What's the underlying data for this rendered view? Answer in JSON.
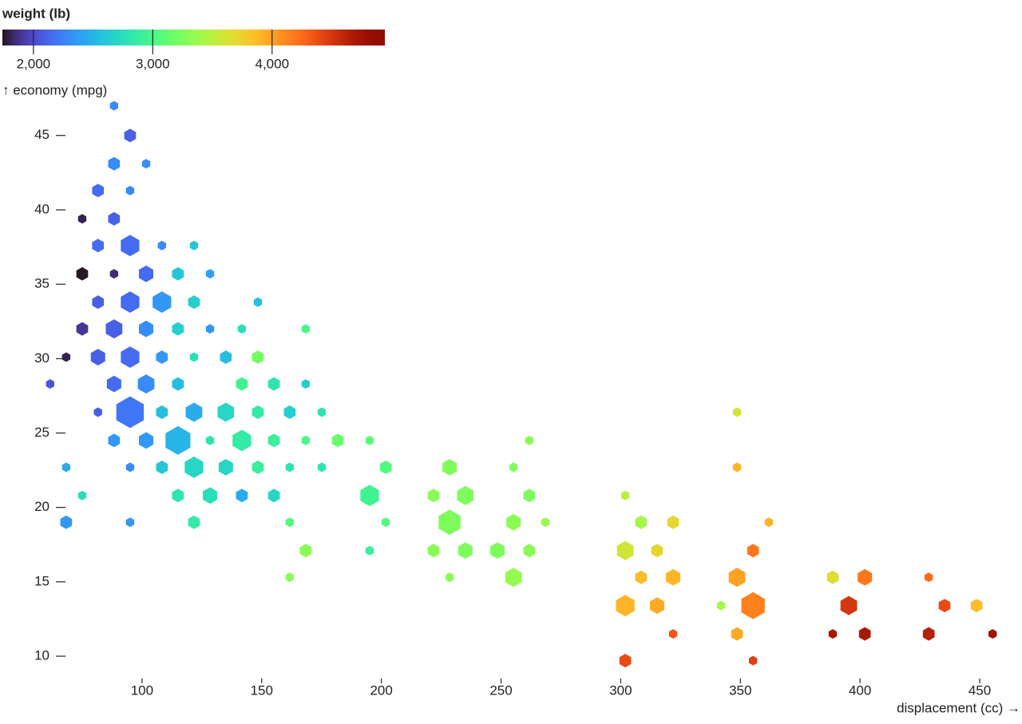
{
  "chart_data": {
    "type": "hexbin",
    "x_label": "displacement (cc) →",
    "y_label": "↑ economy (mpg)",
    "color_label": "weight (lb)",
    "color_scheme": "turbo",
    "xlim": [
      61,
      462
    ],
    "xticks": [
      100,
      150,
      200,
      250,
      300,
      350,
      400,
      450
    ],
    "ylim": [
      8.5,
      47.4
    ],
    "yticks": [
      10,
      15,
      20,
      25,
      30,
      35,
      40,
      45
    ],
    "color_lim": [
      1740,
      4945
    ],
    "color_ticks": [
      {
        "value": 2000,
        "label": "2,000"
      },
      {
        "value": 3000,
        "label": "3,000"
      },
      {
        "value": 4000,
        "label": "4,000"
      }
    ],
    "x": [
      88.3,
      95.0,
      88.3,
      101.7,
      81.6,
      95.0,
      75.0,
      88.3,
      81.6,
      95.0,
      108.3,
      121.7,
      75.0,
      88.3,
      101.7,
      115.0,
      128.4,
      81.6,
      95.0,
      108.3,
      121.7,
      148.4,
      75.0,
      88.3,
      101.7,
      115.0,
      128.4,
      141.7,
      168.4,
      68.3,
      81.6,
      95.0,
      108.3,
      121.7,
      135.0,
      148.4,
      61.6,
      88.3,
      101.7,
      115.0,
      141.7,
      155.1,
      168.4,
      81.6,
      95.0,
      108.3,
      121.7,
      135.0,
      148.4,
      161.7,
      175.1,
      348.6,
      88.3,
      101.7,
      115.0,
      128.4,
      141.7,
      155.1,
      168.4,
      181.8,
      195.1,
      261.8,
      68.3,
      95.0,
      108.3,
      121.7,
      135.0,
      148.4,
      161.7,
      175.1,
      201.8,
      228.5,
      255.2,
      348.6,
      75.0,
      115.0,
      128.4,
      141.7,
      155.1,
      195.1,
      221.8,
      235.1,
      261.8,
      301.9,
      68.3,
      95.0,
      121.7,
      161.7,
      201.8,
      228.5,
      255.2,
      268.5,
      308.5,
      321.9,
      361.9,
      168.4,
      195.1,
      221.8,
      235.1,
      248.5,
      261.8,
      301.9,
      315.2,
      355.3,
      161.7,
      228.5,
      255.2,
      308.5,
      321.9,
      348.6,
      388.6,
      402.0,
      428.7,
      301.9,
      315.2,
      341.9,
      355.3,
      395.3,
      435.3,
      448.7,
      321.9,
      348.6,
      388.6,
      402.0,
      428.7,
      455.4,
      301.9,
      355.3
    ],
    "y": [
      47.0,
      45.0,
      43.1,
      43.1,
      41.3,
      41.3,
      39.4,
      39.4,
      37.6,
      37.6,
      37.6,
      37.6,
      35.7,
      35.7,
      35.7,
      35.7,
      35.7,
      33.8,
      33.8,
      33.8,
      33.8,
      33.8,
      32.0,
      32.0,
      32.0,
      32.0,
      32.0,
      32.0,
      32.0,
      30.1,
      30.1,
      30.1,
      30.1,
      30.1,
      30.1,
      30.1,
      28.3,
      28.3,
      28.3,
      28.3,
      28.3,
      28.3,
      28.3,
      26.4,
      26.4,
      26.4,
      26.4,
      26.4,
      26.4,
      26.4,
      26.4,
      26.4,
      24.5,
      24.5,
      24.5,
      24.5,
      24.5,
      24.5,
      24.5,
      24.5,
      24.5,
      24.5,
      22.7,
      22.7,
      22.7,
      22.7,
      22.7,
      22.7,
      22.7,
      22.7,
      22.7,
      22.7,
      22.7,
      22.7,
      20.8,
      20.8,
      20.8,
      20.8,
      20.8,
      20.8,
      20.8,
      20.8,
      20.8,
      20.8,
      19.0,
      19.0,
      19.0,
      19.0,
      19.0,
      19.0,
      19.0,
      19.0,
      19.0,
      19.0,
      19.0,
      17.1,
      17.1,
      17.1,
      17.1,
      17.1,
      17.1,
      17.1,
      17.1,
      17.1,
      15.3,
      15.3,
      15.3,
      15.3,
      15.3,
      15.3,
      15.3,
      15.3,
      15.3,
      13.4,
      13.4,
      13.4,
      13.4,
      13.4,
      13.4,
      13.4,
      11.5,
      11.5,
      11.5,
      11.5,
      11.5,
      11.5,
      9.7,
      9.7
    ],
    "count": [
      1,
      2,
      2,
      1,
      2,
      1,
      1,
      2,
      2,
      5,
      1,
      1,
      2,
      1,
      3,
      2,
      1,
      2,
      5,
      5,
      2,
      1,
      2,
      4,
      3,
      2,
      1,
      1,
      1,
      1,
      3,
      5,
      2,
      1,
      2,
      2,
      1,
      3,
      4,
      2,
      2,
      2,
      1,
      1,
      11,
      2,
      4,
      4,
      2,
      2,
      1,
      1,
      2,
      3,
      9,
      1,
      5,
      2,
      1,
      2,
      1,
      1,
      1,
      1,
      2,
      5,
      3,
      2,
      1,
      1,
      2,
      3,
      1,
      1,
      1,
      2,
      3,
      2,
      2,
      5,
      2,
      4,
      2,
      1,
      2,
      1,
      2,
      1,
      1,
      7,
      3,
      1,
      2,
      2,
      1,
      2,
      1,
      2,
      3,
      3,
      2,
      4,
      2,
      2,
      1,
      1,
      4,
      2,
      3,
      4,
      2,
      3,
      1,
      5,
      3,
      1,
      8,
      4,
      2,
      2,
      1,
      2,
      1,
      2,
      2,
      1,
      2,
      1
    ],
    "weight": [
      2300,
      2100,
      2300,
      2300,
      2150,
      2300,
      1800,
      2100,
      2150,
      2150,
      2300,
      2600,
      1750,
      1850,
      2150,
      2600,
      2400,
      2100,
      2150,
      2350,
      2650,
      2550,
      1900,
      2100,
      2300,
      2650,
      2350,
      2750,
      3000,
      1800,
      2100,
      2150,
      2350,
      2750,
      2550,
      3200,
      2050,
      2150,
      2300,
      2550,
      2950,
      2800,
      2650,
      2100,
      2200,
      2550,
      2450,
      2700,
      2850,
      2650,
      2800,
      3600,
      2350,
      2350,
      2500,
      2800,
      2850,
      2900,
      3000,
      3150,
      3100,
      3300,
      2450,
      2300,
      2600,
      2700,
      2700,
      2900,
      2800,
      2800,
      3050,
      3250,
      3250,
      3900,
      2750,
      2800,
      2750,
      2450,
      2700,
      2950,
      3300,
      3250,
      3250,
      3500,
      2350,
      2350,
      2850,
      3050,
      3050,
      3250,
      3300,
      3350,
      3400,
      3700,
      3900,
      3300,
      2900,
      3300,
      3250,
      3250,
      3300,
      3600,
      3700,
      4200,
      3300,
      3300,
      3350,
      3850,
      3900,
      4000,
      3650,
      4200,
      4250,
      3900,
      3950,
      3400,
      4150,
      4500,
      4400,
      3850,
      4350,
      3950,
      4700,
      4700,
      4650,
      4750,
      4400,
      4450
    ]
  }
}
